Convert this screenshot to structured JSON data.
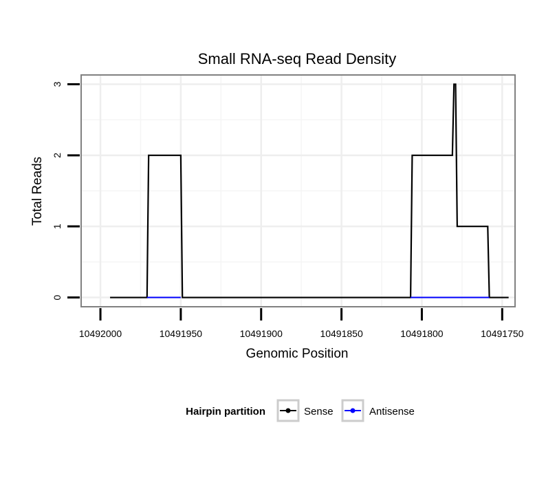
{
  "chart_data": {
    "type": "line",
    "title": "Small RNA-seq Read Density",
    "xlabel": "Genomic Position",
    "ylabel": "Total Reads",
    "x_reversed": true,
    "xlim": [
      10492012,
      10491742
    ],
    "ylim": [
      -0.13,
      3.13
    ],
    "xticks": [
      10492000,
      10491950,
      10491900,
      10491850,
      10491800,
      10491750
    ],
    "xtick_labels": [
      "10492000",
      "10491950",
      "10491900",
      "10491850",
      "10491800",
      "10491750"
    ],
    "yticks": [
      0,
      1,
      2,
      3
    ],
    "ytick_labels": [
      "0",
      "1",
      "2",
      "3"
    ],
    "grid": true,
    "legend": {
      "position": "bottom",
      "title": "Hairpin partition",
      "entries": [
        "Sense",
        "Antisense"
      ]
    },
    "series": [
      {
        "name": "Sense",
        "color": "#000000",
        "x": [
          10491994,
          10491971,
          10491970,
          10491950,
          10491949,
          10491807,
          10491806,
          10491781,
          10491780,
          10491779,
          10491778,
          10491777,
          10491759,
          10491758,
          10491746
        ],
        "y": [
          0,
          0,
          2,
          2,
          0,
          0,
          2,
          2,
          3,
          3,
          1,
          1,
          1,
          0,
          0
        ]
      },
      {
        "name": "Antisense",
        "color": "#0000ff",
        "x": [
          10491971,
          10491950,
          10491807,
          10491758
        ],
        "y": [
          0,
          0,
          0,
          0
        ],
        "segments": [
          [
            0,
            1
          ],
          [
            2,
            3
          ]
        ]
      }
    ]
  }
}
